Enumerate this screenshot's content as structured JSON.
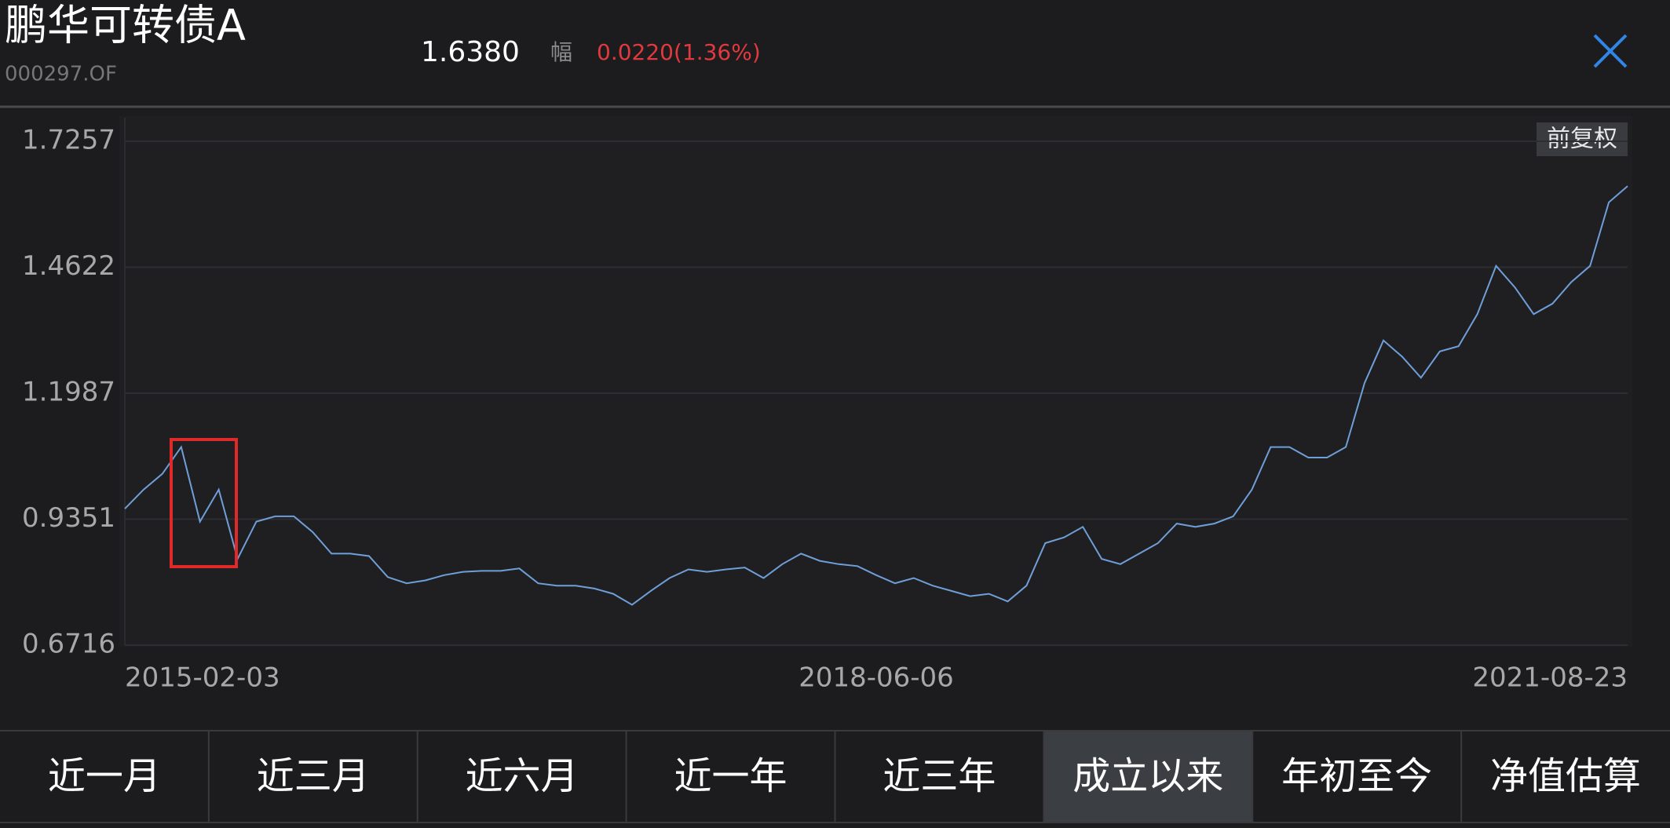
{
  "header": {
    "title": "鹏华可转债A",
    "code": "000297.OF",
    "price": "1.6380",
    "change_label": "幅",
    "change": "0.0220(1.36%)"
  },
  "chart_badge": "前复权",
  "chart_data": {
    "type": "line",
    "color": "#6f9fd8",
    "categories": [
      "2015-02-03",
      null,
      null,
      null,
      null,
      null,
      null,
      null,
      null,
      null,
      null,
      null,
      null,
      null,
      null,
      null,
      null,
      null,
      null,
      null,
      null,
      null,
      null,
      null,
      null,
      null,
      null,
      null,
      null,
      null,
      null,
      null,
      null,
      null,
      null,
      null,
      null,
      null,
      null,
      null,
      "2018-06-06",
      null,
      null,
      null,
      null,
      null,
      null,
      null,
      null,
      null,
      null,
      null,
      null,
      null,
      null,
      null,
      null,
      null,
      null,
      null,
      null,
      null,
      null,
      null,
      null,
      null,
      null,
      null,
      null,
      null,
      null,
      null,
      null,
      null,
      null,
      null,
      null,
      null,
      null,
      null,
      "2021-08-23"
    ],
    "values": [
      0.957,
      0.997,
      1.03,
      1.086,
      0.93,
      0.997,
      0.852,
      0.93,
      0.941,
      0.941,
      0.908,
      0.863,
      0.863,
      0.858,
      0.814,
      0.801,
      0.807,
      0.818,
      0.825,
      0.827,
      0.827,
      0.832,
      0.801,
      0.796,
      0.796,
      0.79,
      0.779,
      0.756,
      0.785,
      0.812,
      0.83,
      0.825,
      0.83,
      0.834,
      0.812,
      0.841,
      0.863,
      0.848,
      0.841,
      0.837,
      0.818,
      0.801,
      0.812,
      0.796,
      0.785,
      0.774,
      0.779,
      0.763,
      0.796,
      0.885,
      0.897,
      0.919,
      0.852,
      0.841,
      0.863,
      0.885,
      0.926,
      0.919,
      0.926,
      0.941,
      0.997,
      1.086,
      1.086,
      1.064,
      1.064,
      1.086,
      1.22,
      1.309,
      1.275,
      1.231,
      1.286,
      1.297,
      1.364,
      1.465,
      1.42,
      1.364,
      1.386,
      1.431,
      1.465,
      1.598,
      1.632
    ],
    "ylim": [
      0.6716,
      1.7257
    ],
    "yticks": [
      0.6716,
      0.9351,
      1.1987,
      1.4622,
      1.7257
    ],
    "grid": true
  },
  "tabs": [
    "近一月",
    "近三月",
    "近六月",
    "近一年",
    "近三年",
    "成立以来",
    "年初至今",
    "净值估算"
  ]
}
